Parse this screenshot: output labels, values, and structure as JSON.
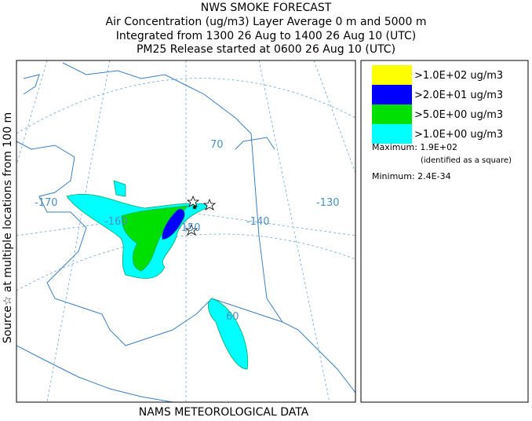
{
  "header": {
    "lines": [
      "NWS SMOKE FORECAST",
      "Air Concentration (ug/m3) Layer Average    0 m and  5000 m",
      "Integrated from 1300 26 Aug to 1400 26 Aug 10 (UTC)",
      "PM25 Release started at 0600 26 Aug 10 (UTC)"
    ]
  },
  "side_label": "Source☆ at multiple locations from  100 m",
  "footer": "NAMS METEOROLOGICAL DATA",
  "map": {
    "labels": [
      "-170",
      "-160",
      "-150",
      "-140",
      "-130",
      "70",
      "60"
    ]
  },
  "legend": {
    "entries": [
      {
        "label": ">1.0E+02 ug/m3",
        "color": "#ffff00"
      },
      {
        "label": ">2.0E+01 ug/m3",
        "color": "#0000ff"
      },
      {
        "label": ">5.0E+00 ug/m3",
        "color": "#00e000"
      },
      {
        "label": ">1.0E+00 ug/m3",
        "color": "#00ffff"
      }
    ],
    "maximum": "Maximum: 1.9E+02",
    "max_note": "(identified as a square)",
    "minimum": "Minimum: 2.4E-34"
  }
}
